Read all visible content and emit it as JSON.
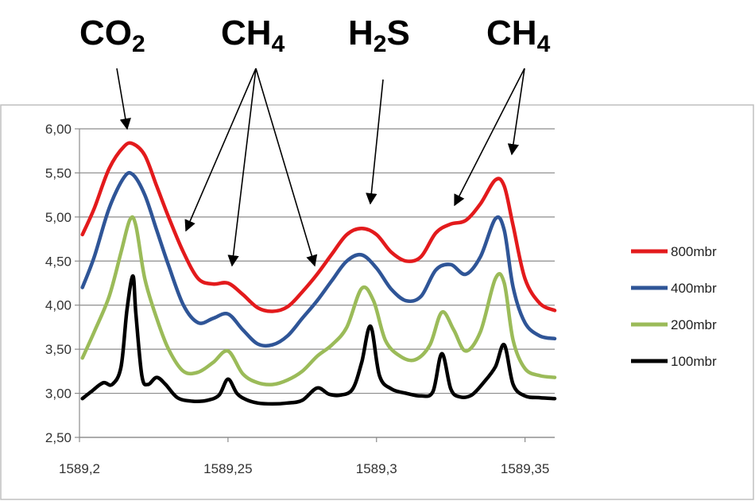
{
  "chart_data": {
    "type": "line",
    "title": "",
    "xlabel": "",
    "ylabel": "",
    "xlim": [
      1589.2,
      1589.36
    ],
    "ylim": [
      2.5,
      6.0
    ],
    "grid": "horizontal",
    "legend_position": "right",
    "x_ticks": [
      "1589,2",
      "1589,25",
      "1589,3",
      "1589,35"
    ],
    "y_ticks": [
      "2,50",
      "3,00",
      "3,50",
      "4,00",
      "4,50",
      "5,00",
      "5,50",
      "6,00"
    ],
    "annotations": [
      {
        "base": "CO",
        "sub": "2"
      },
      {
        "base": "CH",
        "sub": "4"
      },
      {
        "base": "H",
        "sub": "2",
        "rest": "S"
      },
      {
        "base": "CH",
        "sub": "4"
      }
    ],
    "series": [
      {
        "name": "800mbr",
        "color": "#e31a1c",
        "x": [
          1589.201,
          1589.205,
          1589.21,
          1589.215,
          1589.218,
          1589.222,
          1589.226,
          1589.23,
          1589.235,
          1589.24,
          1589.245,
          1589.25,
          1589.255,
          1589.26,
          1589.265,
          1589.27,
          1589.275,
          1589.28,
          1589.285,
          1589.29,
          1589.295,
          1589.3,
          1589.305,
          1589.31,
          1589.315,
          1589.32,
          1589.325,
          1589.33,
          1589.335,
          1589.34,
          1589.343,
          1589.346,
          1589.35,
          1589.355,
          1589.36
        ],
        "y": [
          4.8,
          5.1,
          5.55,
          5.8,
          5.83,
          5.7,
          5.35,
          5.0,
          4.6,
          4.3,
          4.24,
          4.25,
          4.12,
          3.97,
          3.93,
          3.98,
          4.15,
          4.35,
          4.58,
          4.8,
          4.87,
          4.8,
          4.6,
          4.5,
          4.55,
          4.82,
          4.92,
          4.96,
          5.15,
          5.42,
          5.35,
          4.9,
          4.3,
          4.02,
          3.94
        ]
      },
      {
        "name": "400mbr",
        "color": "#2f5597",
        "x": [
          1589.201,
          1589.205,
          1589.21,
          1589.215,
          1589.218,
          1589.222,
          1589.226,
          1589.23,
          1589.235,
          1589.24,
          1589.245,
          1589.25,
          1589.255,
          1589.26,
          1589.265,
          1589.27,
          1589.275,
          1589.28,
          1589.285,
          1589.29,
          1589.295,
          1589.3,
          1589.305,
          1589.31,
          1589.315,
          1589.32,
          1589.325,
          1589.33,
          1589.335,
          1589.34,
          1589.343,
          1589.346,
          1589.35,
          1589.355,
          1589.36
        ],
        "y": [
          4.2,
          4.55,
          5.1,
          5.45,
          5.48,
          5.25,
          4.85,
          4.45,
          4.0,
          3.8,
          3.85,
          3.9,
          3.72,
          3.56,
          3.55,
          3.65,
          3.85,
          4.05,
          4.28,
          4.5,
          4.57,
          4.42,
          4.18,
          4.05,
          4.1,
          4.4,
          4.46,
          4.35,
          4.55,
          4.98,
          4.85,
          4.2,
          3.8,
          3.65,
          3.62
        ]
      },
      {
        "name": "200mbr",
        "color": "#9bbb59",
        "x": [
          1589.201,
          1589.205,
          1589.21,
          1589.214,
          1589.217,
          1589.219,
          1589.222,
          1589.226,
          1589.23,
          1589.235,
          1589.24,
          1589.245,
          1589.25,
          1589.255,
          1589.26,
          1589.265,
          1589.27,
          1589.275,
          1589.28,
          1589.285,
          1589.29,
          1589.295,
          1589.299,
          1589.303,
          1589.308,
          1589.313,
          1589.318,
          1589.322,
          1589.326,
          1589.33,
          1589.335,
          1589.34,
          1589.343,
          1589.346,
          1589.35,
          1589.355,
          1589.36
        ],
        "y": [
          3.4,
          3.7,
          4.1,
          4.6,
          4.97,
          4.9,
          4.3,
          3.85,
          3.5,
          3.25,
          3.24,
          3.35,
          3.48,
          3.22,
          3.12,
          3.1,
          3.15,
          3.25,
          3.42,
          3.55,
          3.75,
          4.19,
          4.05,
          3.6,
          3.42,
          3.38,
          3.55,
          3.92,
          3.72,
          3.48,
          3.7,
          4.3,
          4.25,
          3.6,
          3.28,
          3.2,
          3.18
        ]
      },
      {
        "name": "100mbr",
        "color": "#000000",
        "x": [
          1589.201,
          1589.204,
          1589.208,
          1589.211,
          1589.214,
          1589.216,
          1589.218,
          1589.219,
          1589.221,
          1589.223,
          1589.226,
          1589.229,
          1589.233,
          1589.238,
          1589.243,
          1589.247,
          1589.25,
          1589.253,
          1589.256,
          1589.26,
          1589.265,
          1589.27,
          1589.275,
          1589.28,
          1589.284,
          1589.288,
          1589.292,
          1589.295,
          1589.298,
          1589.301,
          1589.305,
          1589.31,
          1589.315,
          1589.319,
          1589.322,
          1589.325,
          1589.328,
          1589.332,
          1589.336,
          1589.34,
          1589.343,
          1589.346,
          1589.35,
          1589.355,
          1589.36
        ],
        "y": [
          2.94,
          3.02,
          3.12,
          3.1,
          3.3,
          3.95,
          4.33,
          3.9,
          3.2,
          3.1,
          3.18,
          3.1,
          2.95,
          2.91,
          2.92,
          2.98,
          3.16,
          3.0,
          2.93,
          2.89,
          2.88,
          2.89,
          2.92,
          3.06,
          2.99,
          2.98,
          3.05,
          3.35,
          3.76,
          3.2,
          3.05,
          3.0,
          2.97,
          3.02,
          3.45,
          3.05,
          2.96,
          2.98,
          3.12,
          3.3,
          3.55,
          3.1,
          2.97,
          2.95,
          2.94
        ]
      }
    ]
  }
}
